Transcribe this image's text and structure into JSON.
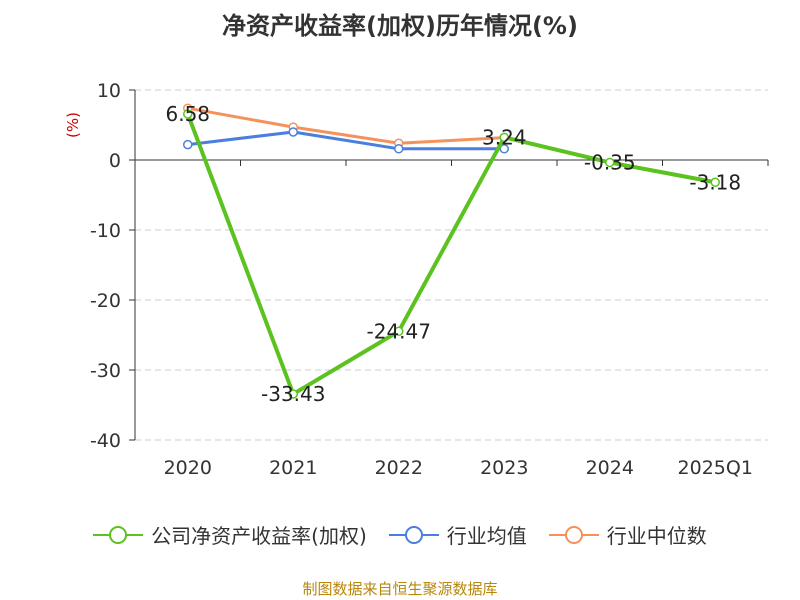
{
  "chart_data": {
    "type": "line",
    "title": "净资产收益率(加权)历年情况(%)",
    "ylabel": "(%)",
    "xlabel": "",
    "categories": [
      "2020",
      "2021",
      "2022",
      "2023",
      "2024",
      "2025Q1"
    ],
    "ylim": [
      -40,
      10
    ],
    "yticks": [
      10,
      0,
      -10,
      -20,
      -30,
      -40
    ],
    "grid": true,
    "legend_position": "bottom",
    "series": [
      {
        "name": "公司净资产收益率(加权)",
        "color": "#5cc21f",
        "values": [
          6.58,
          -33.43,
          -24.47,
          3.24,
          -0.35,
          -3.18
        ],
        "labels": [
          "6.58",
          "-33.43",
          "-24.47",
          "3.24",
          "-0.35",
          "-3.18"
        ]
      },
      {
        "name": "行业均值",
        "color": "#4a7fdf",
        "values": [
          2.2,
          4.0,
          1.6,
          1.6,
          null,
          null
        ]
      },
      {
        "name": "行业中位数",
        "color": "#f5915b",
        "values": [
          7.4,
          4.7,
          2.4,
          3.2,
          null,
          null
        ]
      }
    ]
  },
  "footer": "制图数据来自恒生聚源数据库"
}
